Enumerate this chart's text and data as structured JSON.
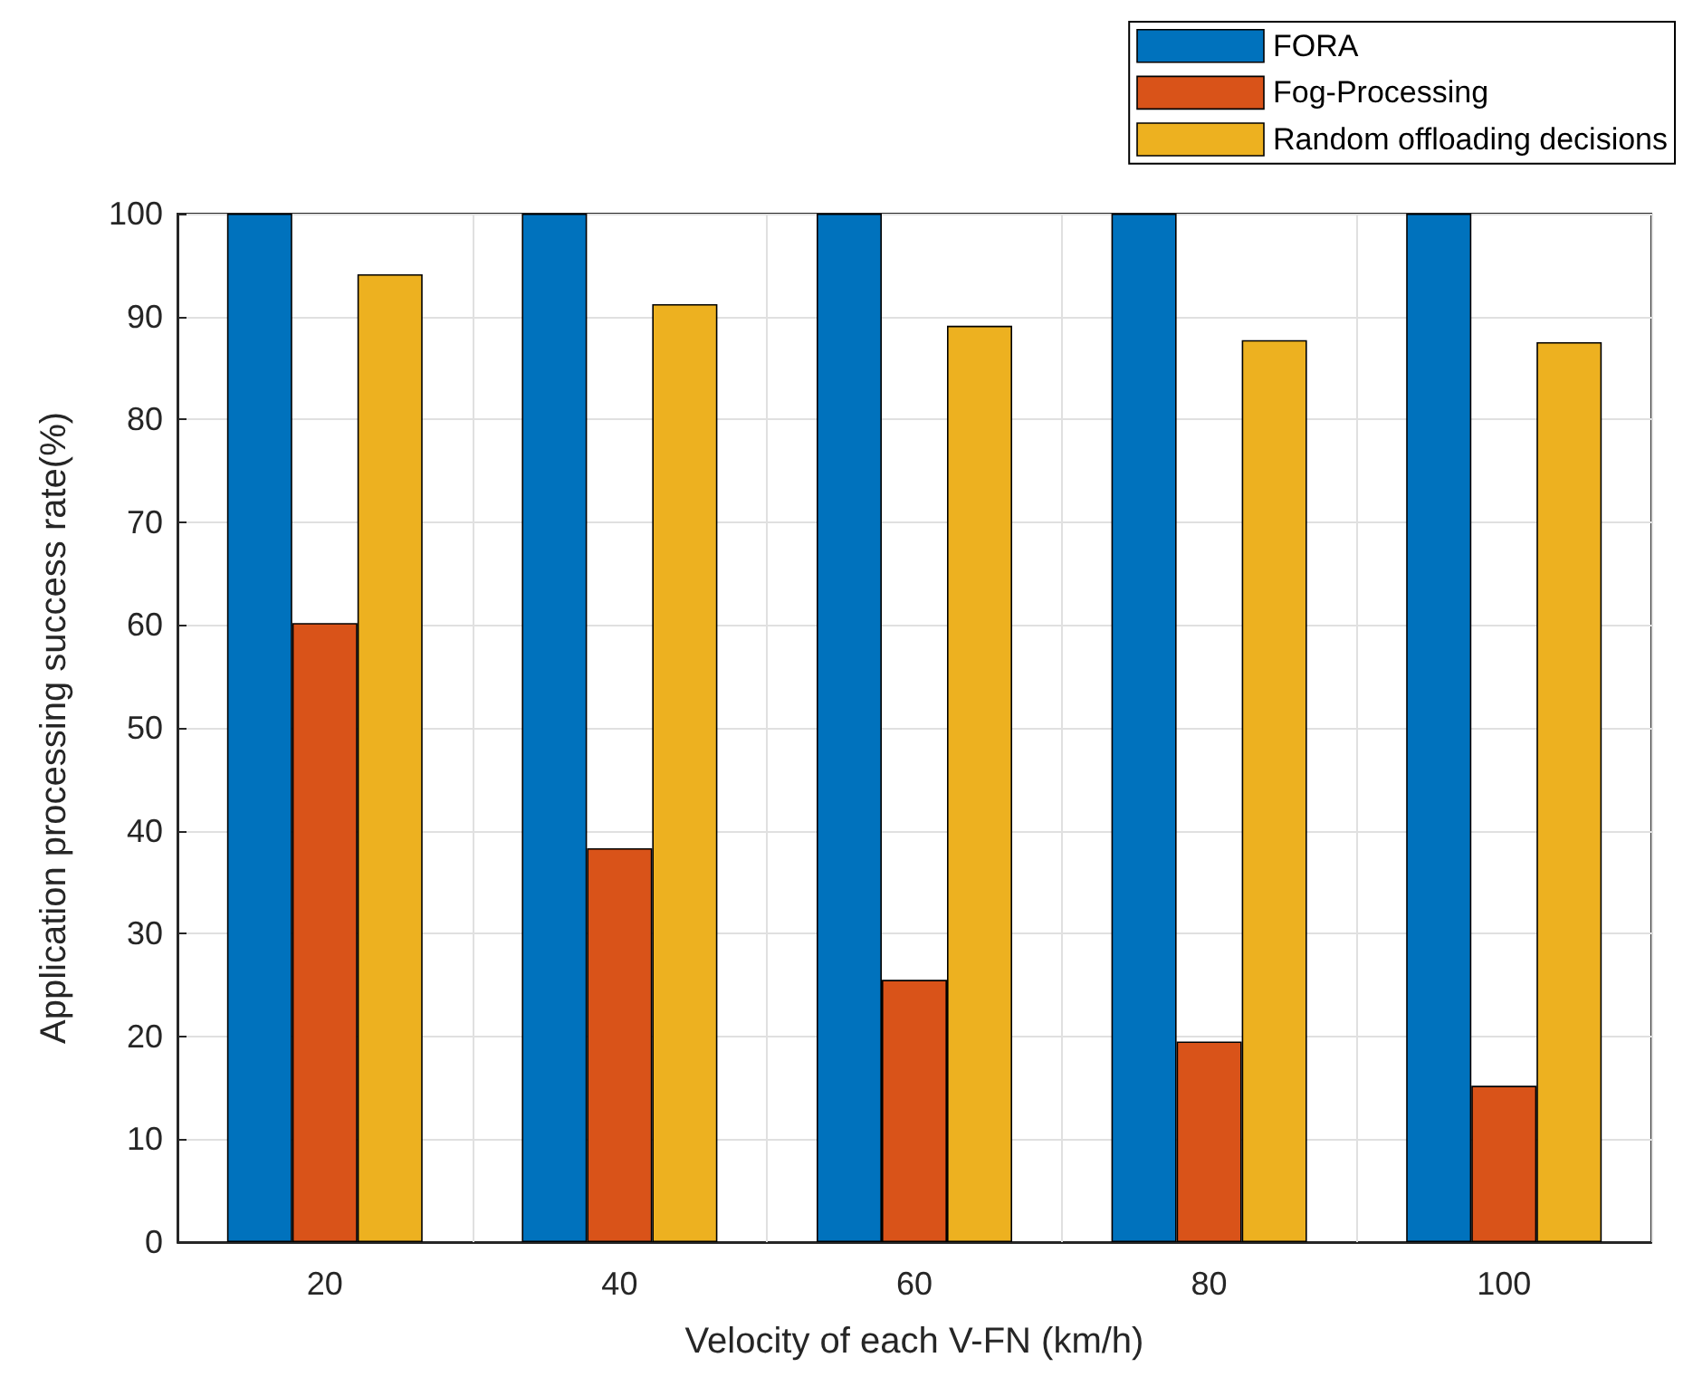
{
  "chart_data": {
    "type": "bar",
    "xlabel": "Velocity of each V-FN (km/h)",
    "ylabel": "Application processing success rate(%)",
    "categories": [
      "20",
      "40",
      "60",
      "80",
      "100"
    ],
    "series": [
      {
        "name": "FORA",
        "color": "#0072bd",
        "values": [
          100,
          100,
          100,
          100,
          100
        ]
      },
      {
        "name": "Fog-Processing",
        "color": "#d95319",
        "values": [
          60.2,
          38.3,
          25.5,
          19.5,
          15.2
        ]
      },
      {
        "name": "Random offloading decisions",
        "color": "#edb120",
        "values": [
          94.1,
          91.2,
          89.1,
          87.7,
          87.5
        ]
      }
    ],
    "ylim": [
      0,
      100
    ],
    "yticks": [
      0,
      10,
      20,
      30,
      40,
      50,
      60,
      70,
      80,
      90,
      100
    ],
    "grid": true,
    "legend": "top right"
  }
}
